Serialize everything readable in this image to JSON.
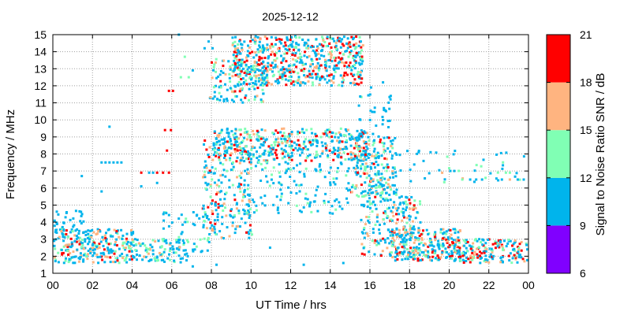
{
  "chart_data": {
    "type": "heatmap",
    "title": "2025-12-12",
    "xlabel": "UT Time / hrs",
    "ylabel": "Frequency / MHz",
    "colorbar_label": "Signal to Noise Ratio SNR / dB",
    "xlim": [
      0,
      24
    ],
    "ylim": [
      1,
      15
    ],
    "grid": true,
    "x_ticks": [
      "00",
      "02",
      "04",
      "06",
      "08",
      "10",
      "12",
      "14",
      "16",
      "18",
      "20",
      "22",
      "00"
    ],
    "y_ticks": [
      "1",
      "2",
      "3",
      "4",
      "5",
      "6",
      "7",
      "8",
      "9",
      "10",
      "11",
      "12",
      "13",
      "14",
      "15"
    ],
    "colorbar": {
      "ticks": [
        "6",
        "9",
        "12",
        "15",
        "18",
        "21"
      ],
      "bins": [
        {
          "min": 6,
          "max": 9,
          "color": "#8000ff"
        },
        {
          "min": 9,
          "max": 12,
          "color": "#00b4ec"
        },
        {
          "min": 12,
          "max": 15,
          "color": "#80ffb4"
        },
        {
          "min": 15,
          "max": 18,
          "color": "#ffb480"
        },
        {
          "min": 18,
          "max": 21,
          "color": "#ff0000"
        }
      ]
    },
    "density_regions": [
      {
        "t": [
          0.0,
          4.0
        ],
        "f": [
          1.6,
          3.6
        ],
        "n": 260,
        "snr": [
          9,
          19
        ]
      },
      {
        "t": [
          0.0,
          1.5
        ],
        "f": [
          3.4,
          4.7
        ],
        "n": 30,
        "snr": [
          9,
          12
        ]
      },
      {
        "t": [
          4.0,
          6.8
        ],
        "f": [
          1.6,
          3.0
        ],
        "n": 90,
        "snr": [
          9,
          15
        ]
      },
      {
        "t": [
          5.5,
          8.0
        ],
        "f": [
          2.2,
          4.6
        ],
        "n": 55,
        "snr": [
          9,
          14
        ]
      },
      {
        "t": [
          7.5,
          10.0
        ],
        "f": [
          3.0,
          8.8
        ],
        "n": 220,
        "snr": [
          9,
          19
        ]
      },
      {
        "t": [
          7.8,
          10.8
        ],
        "f": [
          11.0,
          13.6
        ],
        "n": 120,
        "snr": [
          9,
          20
        ]
      },
      {
        "t": [
          9.0,
          15.6
        ],
        "f": [
          12.0,
          14.9
        ],
        "n": 620,
        "snr": [
          9,
          21
        ]
      },
      {
        "t": [
          8.0,
          15.8
        ],
        "f": [
          7.6,
          9.5
        ],
        "n": 420,
        "snr": [
          9,
          21
        ]
      },
      {
        "t": [
          9.5,
          15.0
        ],
        "f": [
          4.5,
          7.6
        ],
        "n": 140,
        "snr": [
          9,
          13
        ]
      },
      {
        "t": [
          15.0,
          17.3
        ],
        "f": [
          5.5,
          9.0
        ],
        "n": 220,
        "snr": [
          9,
          18
        ]
      },
      {
        "t": [
          15.3,
          17.0
        ],
        "f": [
          9.0,
          11.5
        ],
        "n": 35,
        "snr": [
          9,
          12
        ]
      },
      {
        "t": [
          15.5,
          18.5
        ],
        "f": [
          2.0,
          5.5
        ],
        "n": 200,
        "snr": [
          9,
          18
        ]
      },
      {
        "t": [
          17.0,
          20.5
        ],
        "f": [
          1.7,
          3.6
        ],
        "n": 240,
        "snr": [
          9,
          21
        ]
      },
      {
        "t": [
          20.0,
          24.0
        ],
        "f": [
          1.6,
          3.0
        ],
        "n": 190,
        "snr": [
          9,
          21
        ]
      },
      {
        "t": [
          16.5,
          24.0
        ],
        "f": [
          6.2,
          8.2
        ],
        "n": 45,
        "snr": [
          9,
          15
        ]
      }
    ],
    "points": [
      {
        "t": 3.0,
        "f": 7.5,
        "snr": 10
      },
      {
        "t": 3.2,
        "f": 7.5,
        "snr": 10
      },
      {
        "t": 3.4,
        "f": 7.5,
        "snr": 10
      },
      {
        "t": 2.6,
        "f": 7.5,
        "snr": 10
      },
      {
        "t": 2.8,
        "f": 7.5,
        "snr": 10
      },
      {
        "t": 2.4,
        "f": 7.5,
        "snr": 10
      },
      {
        "t": 2.8,
        "f": 9.6,
        "snr": 10
      },
      {
        "t": 2.4,
        "f": 5.8,
        "snr": 10
      },
      {
        "t": 4.4,
        "f": 6.9,
        "snr": 19
      },
      {
        "t": 5.2,
        "f": 6.9,
        "snr": 19
      },
      {
        "t": 5.5,
        "f": 6.9,
        "snr": 19
      },
      {
        "t": 5.8,
        "f": 6.9,
        "snr": 19
      },
      {
        "t": 4.8,
        "f": 6.9,
        "snr": 10
      },
      {
        "t": 5.0,
        "f": 6.9,
        "snr": 10
      },
      {
        "t": 5.8,
        "f": 11.7,
        "snr": 19
      },
      {
        "t": 6.0,
        "f": 11.7,
        "snr": 19
      },
      {
        "t": 5.6,
        "f": 9.4,
        "snr": 19
      },
      {
        "t": 5.9,
        "f": 9.4,
        "snr": 19
      },
      {
        "t": 5.7,
        "f": 8.2,
        "snr": 19
      },
      {
        "t": 4.4,
        "f": 6.1,
        "snr": 10
      },
      {
        "t": 5.2,
        "f": 6.3,
        "snr": 10
      },
      {
        "t": 6.4,
        "f": 12.5,
        "snr": 13
      },
      {
        "t": 6.8,
        "f": 12.5,
        "snr": 13
      },
      {
        "t": 6.6,
        "f": 13.7,
        "snr": 13
      },
      {
        "t": 6.3,
        "f": 15.0,
        "snr": 10
      },
      {
        "t": 7.6,
        "f": 14.2,
        "snr": 10
      },
      {
        "t": 7.8,
        "f": 14.6,
        "snr": 10
      },
      {
        "t": 8.0,
        "f": 14.2,
        "snr": 10
      },
      {
        "t": 7.0,
        "f": 12.9,
        "snr": 10
      },
      {
        "t": 18.4,
        "f": 8.1,
        "snr": 10
      },
      {
        "t": 19.0,
        "f": 8.1,
        "snr": 10
      },
      {
        "t": 18.0,
        "f": 6.4,
        "snr": 10
      },
      {
        "t": 20.0,
        "f": 7.0,
        "snr": 10
      },
      {
        "t": 20.2,
        "f": 7.0,
        "snr": 10
      },
      {
        "t": 22.8,
        "f": 6.9,
        "snr": 13
      },
      {
        "t": 23.0,
        "f": 6.9,
        "snr": 13
      },
      {
        "t": 22.6,
        "f": 6.5,
        "snr": 10
      },
      {
        "t": 23.0,
        "f": 6.5,
        "snr": 16
      },
      {
        "t": 23.4,
        "f": 6.5,
        "snr": 10
      },
      {
        "t": 23.7,
        "f": 6.5,
        "snr": 10
      },
      {
        "t": 23.9,
        "f": 6.5,
        "snr": 10
      },
      {
        "t": 21.0,
        "f": 6.5,
        "snr": 10
      },
      {
        "t": 21.3,
        "f": 6.5,
        "snr": 10
      },
      {
        "t": 21.6,
        "f": 6.5,
        "snr": 10
      },
      {
        "t": 20.6,
        "f": 6.5,
        "snr": 13
      },
      {
        "t": 16.0,
        "f": 11.9,
        "snr": 10
      },
      {
        "t": 16.6,
        "f": 12.2,
        "snr": 10
      },
      {
        "t": 1.4,
        "f": 6.7,
        "snr": 10
      },
      {
        "t": 10.9,
        "f": 2.5,
        "snr": 10
      },
      {
        "t": 8.2,
        "f": 1.5,
        "snr": 10
      },
      {
        "t": 7.0,
        "f": 1.4,
        "snr": 10
      },
      {
        "t": 12.6,
        "f": 1.5,
        "snr": 10
      },
      {
        "t": 14.6,
        "f": 1.6,
        "snr": 10
      }
    ]
  }
}
